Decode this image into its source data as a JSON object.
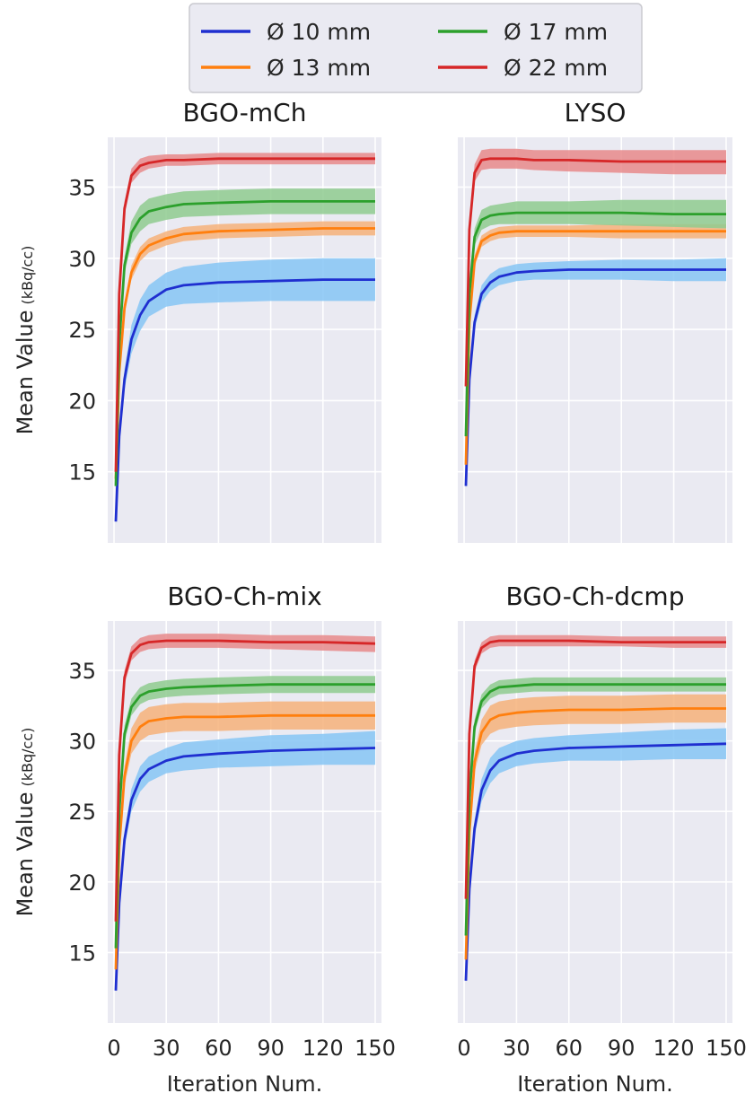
{
  "legend": {
    "items": [
      {
        "label": "Ø 10 mm",
        "color": "#1f2fd0"
      },
      {
        "label": "Ø 13 mm",
        "color": "#ff7f0e"
      },
      {
        "label": "Ø 17 mm",
        "color": "#2ca02c"
      },
      {
        "label": "Ø 22 mm",
        "color": "#d62728"
      }
    ]
  },
  "axis_text": {
    "ylabel_main": "Mean Value",
    "ylabel_unit": "(kBq/cc)",
    "xlabel": "Iteration Num."
  },
  "chart_data": [
    {
      "type": "line",
      "title": "BGO-mCh",
      "xlim": [
        0,
        150
      ],
      "ylim": [
        10,
        38.5
      ],
      "xticks": [
        0,
        30,
        60,
        90,
        120,
        150
      ],
      "yticks": [
        15,
        20,
        25,
        30,
        35
      ],
      "grid": true,
      "band_colors": [
        "#86c5f5",
        "#f6b27a",
        "#8fcb8f",
        "#e88a8b"
      ],
      "series": [
        {
          "name": "Ø 10 mm",
          "x": [
            1,
            3,
            6,
            10,
            15,
            20,
            30,
            40,
            60,
            90,
            120,
            150
          ],
          "y": [
            11.5,
            17.5,
            21.5,
            24.3,
            26.0,
            27.0,
            27.8,
            28.1,
            28.3,
            28.4,
            28.5,
            28.5
          ],
          "lower": [
            11.3,
            17.1,
            20.8,
            23.3,
            24.9,
            25.9,
            26.6,
            26.8,
            26.9,
            27.0,
            27.0,
            27.0
          ],
          "upper": [
            11.7,
            17.9,
            22.2,
            25.3,
            27.1,
            28.1,
            29.0,
            29.4,
            29.7,
            29.9,
            30.0,
            30.0
          ]
        },
        {
          "name": "Ø 13 mm",
          "x": [
            1,
            3,
            6,
            10,
            15,
            20,
            30,
            40,
            60,
            90,
            120,
            150
          ],
          "y": [
            14.5,
            22.0,
            26.5,
            29.0,
            30.3,
            30.9,
            31.4,
            31.7,
            31.9,
            32.0,
            32.1,
            32.1
          ],
          "lower": [
            14.3,
            21.7,
            26.1,
            28.5,
            29.8,
            30.4,
            30.9,
            31.2,
            31.4,
            31.5,
            31.6,
            31.6
          ],
          "upper": [
            14.7,
            22.3,
            26.9,
            29.5,
            30.8,
            31.4,
            31.9,
            32.2,
            32.4,
            32.5,
            32.6,
            32.6
          ]
        },
        {
          "name": "Ø 17 mm",
          "x": [
            1,
            3,
            6,
            10,
            15,
            20,
            30,
            40,
            60,
            90,
            120,
            150
          ],
          "y": [
            14.0,
            24.0,
            29.5,
            31.8,
            32.8,
            33.3,
            33.6,
            33.8,
            33.9,
            34.0,
            34.0,
            34.0
          ],
          "lower": [
            13.8,
            23.6,
            28.9,
            31.0,
            31.9,
            32.4,
            32.7,
            32.9,
            33.0,
            33.1,
            33.1,
            33.1
          ],
          "upper": [
            14.2,
            24.4,
            30.1,
            32.6,
            33.7,
            34.2,
            34.5,
            34.7,
            34.8,
            34.9,
            34.9,
            34.9
          ]
        },
        {
          "name": "Ø 22 mm",
          "x": [
            1,
            3,
            6,
            10,
            15,
            20,
            30,
            40,
            60,
            90,
            120,
            150
          ],
          "y": [
            15.0,
            27.5,
            33.5,
            35.8,
            36.5,
            36.7,
            36.9,
            36.9,
            37.0,
            37.0,
            37.0,
            37.0
          ],
          "lower": [
            14.8,
            27.1,
            33.0,
            35.3,
            36.0,
            36.3,
            36.5,
            36.5,
            36.6,
            36.6,
            36.6,
            36.6
          ],
          "upper": [
            15.2,
            27.9,
            34.0,
            36.3,
            37.0,
            37.2,
            37.3,
            37.3,
            37.4,
            37.4,
            37.4,
            37.4
          ]
        }
      ]
    },
    {
      "type": "line",
      "title": "LYSO",
      "xlim": [
        0,
        150
      ],
      "ylim": [
        10,
        38.5
      ],
      "xticks": [
        0,
        30,
        60,
        90,
        120,
        150
      ],
      "yticks": [
        15,
        20,
        25,
        30,
        35
      ],
      "grid": true,
      "band_colors": [
        "#86c5f5",
        "#f6b27a",
        "#8fcb8f",
        "#e88a8b"
      ],
      "series": [
        {
          "name": "Ø 10 mm",
          "x": [
            1,
            3,
            6,
            10,
            15,
            20,
            30,
            40,
            60,
            90,
            120,
            150
          ],
          "y": [
            14.0,
            21.5,
            25.5,
            27.5,
            28.3,
            28.7,
            29.0,
            29.1,
            29.2,
            29.2,
            29.2,
            29.2
          ],
          "lower": [
            13.8,
            21.2,
            25.0,
            26.9,
            27.7,
            28.1,
            28.4,
            28.5,
            28.5,
            28.5,
            28.4,
            28.4
          ],
          "upper": [
            14.2,
            21.8,
            26.0,
            28.1,
            28.9,
            29.3,
            29.6,
            29.7,
            29.8,
            29.9,
            29.9,
            30.0
          ]
        },
        {
          "name": "Ø 13 mm",
          "x": [
            1,
            3,
            6,
            10,
            15,
            20,
            30,
            40,
            60,
            90,
            120,
            150
          ],
          "y": [
            15.5,
            25.5,
            29.8,
            31.2,
            31.6,
            31.8,
            31.9,
            31.9,
            31.9,
            31.9,
            31.9,
            31.9
          ],
          "lower": [
            15.3,
            25.2,
            29.4,
            30.8,
            31.2,
            31.4,
            31.5,
            31.5,
            31.5,
            31.4,
            31.4,
            31.4
          ],
          "upper": [
            15.7,
            25.8,
            30.2,
            31.6,
            32.0,
            32.2,
            32.3,
            32.3,
            32.3,
            32.4,
            32.4,
            32.4
          ]
        },
        {
          "name": "Ø 17 mm",
          "x": [
            1,
            3,
            6,
            10,
            15,
            20,
            30,
            40,
            60,
            90,
            120,
            150
          ],
          "y": [
            17.5,
            27.5,
            31.5,
            32.7,
            33.0,
            33.1,
            33.2,
            33.2,
            33.2,
            33.2,
            33.1,
            33.1
          ],
          "lower": [
            17.3,
            27.1,
            30.9,
            32.0,
            32.3,
            32.4,
            32.4,
            32.4,
            32.4,
            32.3,
            32.2,
            32.1
          ],
          "upper": [
            17.7,
            27.9,
            32.1,
            33.4,
            33.7,
            33.8,
            34.0,
            34.0,
            34.0,
            34.1,
            34.1,
            34.1
          ]
        },
        {
          "name": "Ø 22 mm",
          "x": [
            1,
            3,
            6,
            10,
            15,
            20,
            30,
            40,
            60,
            90,
            120,
            150
          ],
          "y": [
            21.0,
            32.0,
            36.0,
            36.9,
            37.0,
            37.0,
            37.0,
            36.9,
            36.9,
            36.8,
            36.8,
            36.8
          ],
          "lower": [
            20.8,
            31.6,
            35.4,
            36.2,
            36.3,
            36.3,
            36.3,
            36.2,
            36.1,
            36.0,
            35.9,
            35.9
          ],
          "upper": [
            21.2,
            32.4,
            36.6,
            37.6,
            37.7,
            37.7,
            37.7,
            37.6,
            37.6,
            37.6,
            37.6,
            37.6
          ]
        }
      ]
    },
    {
      "type": "line",
      "title": "BGO-Ch-mix",
      "xlim": [
        0,
        150
      ],
      "ylim": [
        10,
        38.5
      ],
      "xticks": [
        0,
        30,
        60,
        90,
        120,
        150
      ],
      "yticks": [
        15,
        20,
        25,
        30,
        35
      ],
      "grid": true,
      "band_colors": [
        "#86c5f5",
        "#f6b27a",
        "#8fcb8f",
        "#e88a8b"
      ],
      "series": [
        {
          "name": "Ø 10 mm",
          "x": [
            1,
            3,
            6,
            10,
            15,
            20,
            30,
            40,
            60,
            90,
            120,
            150
          ],
          "y": [
            12.3,
            18.5,
            23.0,
            25.8,
            27.3,
            28.0,
            28.6,
            28.9,
            29.1,
            29.3,
            29.4,
            29.5
          ],
          "lower": [
            12.1,
            18.1,
            22.4,
            25.0,
            26.4,
            27.1,
            27.7,
            27.9,
            28.1,
            28.2,
            28.3,
            28.3
          ],
          "upper": [
            12.5,
            18.9,
            23.6,
            26.6,
            28.2,
            28.9,
            29.5,
            29.9,
            30.1,
            30.4,
            30.5,
            30.7
          ]
        },
        {
          "name": "Ø 13 mm",
          "x": [
            1,
            3,
            6,
            10,
            15,
            20,
            30,
            40,
            60,
            90,
            120,
            150
          ],
          "y": [
            13.8,
            22.5,
            27.5,
            30.0,
            31.0,
            31.4,
            31.6,
            31.7,
            31.7,
            31.8,
            31.8,
            31.8
          ],
          "lower": [
            13.6,
            22.1,
            26.8,
            29.1,
            30.0,
            30.4,
            30.6,
            30.7,
            30.7,
            30.8,
            30.8,
            30.8
          ],
          "upper": [
            14.0,
            22.9,
            28.2,
            30.9,
            32.0,
            32.4,
            32.6,
            32.7,
            32.7,
            32.8,
            32.8,
            32.8
          ]
        },
        {
          "name": "Ø 17 mm",
          "x": [
            1,
            3,
            6,
            10,
            15,
            20,
            30,
            40,
            60,
            90,
            120,
            150
          ],
          "y": [
            15.3,
            25.0,
            30.5,
            32.4,
            33.2,
            33.5,
            33.7,
            33.8,
            33.9,
            34.0,
            34.0,
            34.0
          ],
          "lower": [
            15.1,
            24.6,
            29.9,
            31.8,
            32.6,
            32.9,
            33.1,
            33.2,
            33.3,
            33.4,
            33.4,
            33.4
          ],
          "upper": [
            15.5,
            25.4,
            31.1,
            33.0,
            33.8,
            34.1,
            34.3,
            34.4,
            34.5,
            34.6,
            34.6,
            34.6
          ]
        },
        {
          "name": "Ø 22 mm",
          "x": [
            1,
            3,
            6,
            10,
            15,
            20,
            30,
            40,
            60,
            90,
            120,
            150
          ],
          "y": [
            17.2,
            29.0,
            34.5,
            36.2,
            36.8,
            37.0,
            37.1,
            37.1,
            37.1,
            37.0,
            37.0,
            36.9
          ],
          "lower": [
            17.0,
            28.6,
            34.0,
            35.7,
            36.3,
            36.5,
            36.6,
            36.6,
            36.6,
            36.5,
            36.4,
            36.3
          ],
          "upper": [
            17.4,
            29.4,
            35.0,
            36.7,
            37.3,
            37.5,
            37.6,
            37.6,
            37.6,
            37.5,
            37.5,
            37.4
          ]
        }
      ]
    },
    {
      "type": "line",
      "title": "BGO-Ch-dcmp",
      "xlim": [
        0,
        150
      ],
      "ylim": [
        10,
        38.5
      ],
      "xticks": [
        0,
        30,
        60,
        90,
        120,
        150
      ],
      "yticks": [
        15,
        20,
        25,
        30,
        35
      ],
      "grid": true,
      "band_colors": [
        "#86c5f5",
        "#f6b27a",
        "#8fcb8f",
        "#e88a8b"
      ],
      "series": [
        {
          "name": "Ø 10 mm",
          "x": [
            1,
            3,
            6,
            10,
            15,
            20,
            30,
            40,
            60,
            90,
            120,
            150
          ],
          "y": [
            13.0,
            19.5,
            23.8,
            26.5,
            27.9,
            28.6,
            29.1,
            29.3,
            29.5,
            29.6,
            29.7,
            29.8
          ],
          "lower": [
            12.8,
            19.1,
            23.2,
            25.7,
            27.0,
            27.7,
            28.2,
            28.4,
            28.6,
            28.6,
            28.7,
            28.7
          ],
          "upper": [
            13.2,
            19.9,
            24.4,
            27.3,
            28.8,
            29.5,
            30.0,
            30.2,
            30.4,
            30.6,
            30.8,
            30.9
          ]
        },
        {
          "name": "Ø 13 mm",
          "x": [
            1,
            3,
            6,
            10,
            15,
            20,
            30,
            40,
            60,
            90,
            120,
            150
          ],
          "y": [
            14.5,
            23.5,
            28.5,
            30.6,
            31.5,
            31.8,
            32.0,
            32.1,
            32.2,
            32.2,
            32.3,
            32.3
          ],
          "lower": [
            14.3,
            23.1,
            27.8,
            29.7,
            30.5,
            30.8,
            31.0,
            31.1,
            31.2,
            31.2,
            31.3,
            31.3
          ],
          "upper": [
            14.7,
            23.9,
            29.2,
            31.5,
            32.5,
            32.8,
            33.0,
            33.1,
            33.2,
            33.2,
            33.3,
            33.3
          ]
        },
        {
          "name": "Ø 17 mm",
          "x": [
            1,
            3,
            6,
            10,
            15,
            20,
            30,
            40,
            60,
            90,
            120,
            150
          ],
          "y": [
            16.2,
            26.0,
            31.0,
            32.8,
            33.5,
            33.8,
            33.9,
            34.0,
            34.0,
            34.0,
            34.0,
            34.0
          ],
          "lower": [
            16.0,
            25.6,
            30.5,
            32.3,
            33.0,
            33.3,
            33.4,
            33.5,
            33.5,
            33.5,
            33.5,
            33.5
          ],
          "upper": [
            16.4,
            26.4,
            31.5,
            33.3,
            34.0,
            34.3,
            34.4,
            34.5,
            34.5,
            34.5,
            34.5,
            34.5
          ]
        },
        {
          "name": "Ø 22 mm",
          "x": [
            1,
            3,
            6,
            10,
            15,
            20,
            30,
            40,
            60,
            90,
            120,
            150
          ],
          "y": [
            18.8,
            30.5,
            35.3,
            36.6,
            37.0,
            37.1,
            37.1,
            37.1,
            37.1,
            37.0,
            37.0,
            37.0
          ],
          "lower": [
            18.6,
            30.2,
            34.9,
            36.2,
            36.6,
            36.7,
            36.7,
            36.7,
            36.7,
            36.7,
            36.6,
            36.6
          ],
          "upper": [
            19.0,
            30.8,
            35.7,
            37.0,
            37.4,
            37.5,
            37.5,
            37.5,
            37.5,
            37.4,
            37.4,
            37.4
          ]
        }
      ]
    }
  ]
}
